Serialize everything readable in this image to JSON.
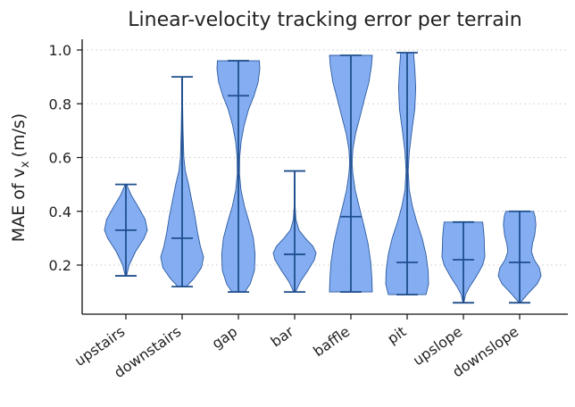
{
  "chart_data": {
    "type": "violin",
    "title": "Linear-velocity tracking error per terrain",
    "ylabel": "MAE of v",
    "ylabel_subscript": "x",
    "ylabel_unit": "(m/s)",
    "xlabel": "",
    "ylim": [
      0.0,
      1.04
    ],
    "yticks": [
      "0.2",
      "0.4",
      "0.6",
      "0.8",
      "1.0"
    ],
    "grid": "y-dotted",
    "fill_color": "#6fa0ef",
    "line_color": "#1f4e8c",
    "categories": [
      "upstairs",
      "downstairs",
      "gap",
      "bar",
      "baffle",
      "pit",
      "upslope",
      "downslope"
    ],
    "series": [
      {
        "min": 0.16,
        "median": 0.33,
        "max": 0.5,
        "density": [
          [
            0.16,
            0.03
          ],
          [
            0.2,
            0.15
          ],
          [
            0.25,
            0.45
          ],
          [
            0.3,
            0.85
          ],
          [
            0.33,
            1.0
          ],
          [
            0.37,
            0.9
          ],
          [
            0.42,
            0.55
          ],
          [
            0.46,
            0.25
          ],
          [
            0.5,
            0.03
          ]
        ]
      },
      {
        "min": 0.12,
        "median": 0.3,
        "max": 0.9,
        "density": [
          [
            0.12,
            0.2
          ],
          [
            0.15,
            0.55
          ],
          [
            0.19,
            0.9
          ],
          [
            0.23,
            1.0
          ],
          [
            0.27,
            0.85
          ],
          [
            0.32,
            0.72
          ],
          [
            0.38,
            0.6
          ],
          [
            0.44,
            0.45
          ],
          [
            0.5,
            0.3
          ],
          [
            0.55,
            0.15
          ],
          [
            0.6,
            0.08
          ],
          [
            0.7,
            0.04
          ],
          [
            0.8,
            0.02
          ],
          [
            0.9,
            0.02
          ]
        ]
      },
      {
        "min": 0.1,
        "median": 0.83,
        "max": 0.96,
        "density": [
          [
            0.1,
            0.3
          ],
          [
            0.13,
            0.55
          ],
          [
            0.18,
            0.75
          ],
          [
            0.24,
            0.78
          ],
          [
            0.3,
            0.7
          ],
          [
            0.36,
            0.5
          ],
          [
            0.42,
            0.28
          ],
          [
            0.48,
            0.12
          ],
          [
            0.54,
            0.05
          ],
          [
            0.6,
            0.06
          ],
          [
            0.66,
            0.13
          ],
          [
            0.72,
            0.27
          ],
          [
            0.78,
            0.48
          ],
          [
            0.83,
            0.73
          ],
          [
            0.88,
            0.92
          ],
          [
            0.93,
            1.0
          ],
          [
            0.96,
            0.98
          ]
        ]
      },
      {
        "min": 0.1,
        "median": 0.24,
        "max": 0.55,
        "density": [
          [
            0.1,
            0.04
          ],
          [
            0.14,
            0.28
          ],
          [
            0.18,
            0.62
          ],
          [
            0.22,
            0.92
          ],
          [
            0.245,
            1.0
          ],
          [
            0.27,
            0.85
          ],
          [
            0.3,
            0.5
          ],
          [
            0.33,
            0.2
          ],
          [
            0.37,
            0.06
          ],
          [
            0.42,
            0.02
          ],
          [
            0.48,
            0.02
          ],
          [
            0.55,
            0.01
          ]
        ]
      },
      {
        "min": 0.1,
        "median": 0.38,
        "max": 0.98,
        "density": [
          [
            0.1,
            1.0
          ],
          [
            0.15,
            0.98
          ],
          [
            0.21,
            0.93
          ],
          [
            0.28,
            0.8
          ],
          [
            0.35,
            0.6
          ],
          [
            0.42,
            0.38
          ],
          [
            0.48,
            0.2
          ],
          [
            0.54,
            0.09
          ],
          [
            0.58,
            0.06
          ],
          [
            0.63,
            0.09
          ],
          [
            0.69,
            0.22
          ],
          [
            0.75,
            0.42
          ],
          [
            0.82,
            0.64
          ],
          [
            0.88,
            0.84
          ],
          [
            0.94,
            0.96
          ],
          [
            0.98,
            1.0
          ]
        ]
      },
      {
        "min": 0.09,
        "median": 0.21,
        "max": 0.99,
        "density": [
          [
            0.09,
            0.88
          ],
          [
            0.13,
            1.0
          ],
          [
            0.18,
            0.98
          ],
          [
            0.24,
            0.88
          ],
          [
            0.3,
            0.7
          ],
          [
            0.36,
            0.45
          ],
          [
            0.42,
            0.24
          ],
          [
            0.48,
            0.1
          ],
          [
            0.55,
            0.05
          ],
          [
            0.62,
            0.1
          ],
          [
            0.7,
            0.22
          ],
          [
            0.78,
            0.36
          ],
          [
            0.86,
            0.4
          ],
          [
            0.93,
            0.36
          ],
          [
            0.99,
            0.3
          ]
        ]
      },
      {
        "min": 0.06,
        "median": 0.22,
        "max": 0.36,
        "density": [
          [
            0.06,
            0.02
          ],
          [
            0.09,
            0.1
          ],
          [
            0.12,
            0.3
          ],
          [
            0.16,
            0.62
          ],
          [
            0.2,
            0.9
          ],
          [
            0.23,
            1.0
          ],
          [
            0.27,
            0.98
          ],
          [
            0.3,
            0.97
          ],
          [
            0.33,
            0.94
          ],
          [
            0.36,
            0.9
          ]
        ]
      },
      {
        "min": 0.06,
        "median": 0.21,
        "max": 0.4,
        "density": [
          [
            0.06,
            0.03
          ],
          [
            0.09,
            0.35
          ],
          [
            0.13,
            0.82
          ],
          [
            0.16,
            1.0
          ],
          [
            0.19,
            0.92
          ],
          [
            0.22,
            0.68
          ],
          [
            0.25,
            0.55
          ],
          [
            0.28,
            0.6
          ],
          [
            0.31,
            0.7
          ],
          [
            0.35,
            0.76
          ],
          [
            0.38,
            0.72
          ],
          [
            0.4,
            0.65
          ]
        ]
      }
    ]
  }
}
